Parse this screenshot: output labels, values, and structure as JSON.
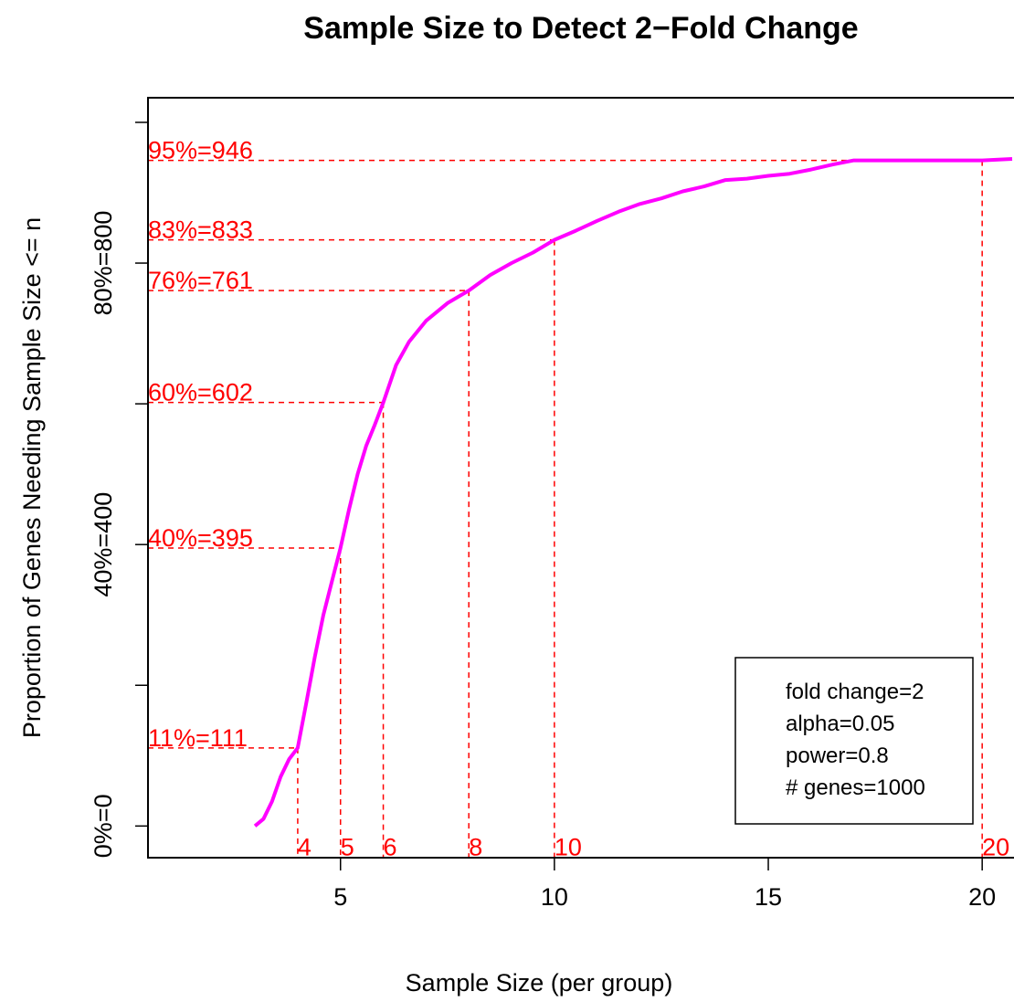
{
  "chart_data": {
    "type": "line",
    "title": "Sample Size to Detect 2−Fold Change",
    "xlabel": "Sample Size (per group)",
    "ylabel": "Proportion of Genes Needing Sample Size <= n",
    "xlim": [
      0.5,
      21
    ],
    "ylim": [
      -45,
      1035
    ],
    "x_ticks": [
      5,
      10,
      15,
      20
    ],
    "y_ticks": [
      {
        "value": 0,
        "label": "0%=0"
      },
      {
        "value": 200,
        "label": ""
      },
      {
        "value": 400,
        "label": "40%=400"
      },
      {
        "value": 600,
        "label": ""
      },
      {
        "value": 800,
        "label": "80%=800"
      },
      {
        "value": 1000,
        "label": ""
      }
    ],
    "grid": false,
    "series": [
      {
        "color": "#ff00ff",
        "x": [
          3.0,
          3.2,
          3.4,
          3.6,
          3.8,
          4.0,
          4.2,
          4.4,
          4.6,
          4.8,
          5.0,
          5.2,
          5.4,
          5.6,
          5.8,
          6.0,
          6.3,
          6.6,
          7.0,
          7.5,
          8.0,
          8.5,
          9.0,
          9.5,
          10.0,
          10.5,
          11.0,
          11.5,
          12.0,
          12.5,
          13.0,
          13.5,
          14.0,
          14.5,
          15.0,
          15.5,
          16.0,
          16.5,
          17.0,
          18.0,
          19.0,
          20.0,
          20.7
        ],
        "y": [
          0,
          10,
          35,
          70,
          95,
          111,
          175,
          240,
          300,
          348,
          395,
          450,
          500,
          540,
          570,
          602,
          655,
          688,
          718,
          743,
          761,
          783,
          800,
          815,
          833,
          846,
          860,
          873,
          884,
          892,
          902,
          909,
          918,
          920,
          924,
          927,
          933,
          940,
          946,
          946,
          946,
          946,
          948
        ]
      }
    ],
    "reference_lines": [
      {
        "x": 4,
        "y": 111,
        "y_label": "11%=111",
        "x_label": "4"
      },
      {
        "x": 5,
        "y": 395,
        "y_label": "40%=395",
        "x_label": "5"
      },
      {
        "x": 6,
        "y": 602,
        "y_label": "60%=602",
        "x_label": "6"
      },
      {
        "x": 8,
        "y": 761,
        "y_label": "76%=761",
        "x_label": "8"
      },
      {
        "x": 10,
        "y": 833,
        "y_label": "83%=833",
        "x_label": "10"
      },
      {
        "x": 20,
        "y": 946,
        "y_label": "95%=946",
        "x_label": "20"
      }
    ],
    "legend": {
      "position": "bottom-right",
      "lines": [
        "fold change=2",
        "alpha=0.05",
        "power=0.8",
        "# genes=1000"
      ]
    }
  }
}
